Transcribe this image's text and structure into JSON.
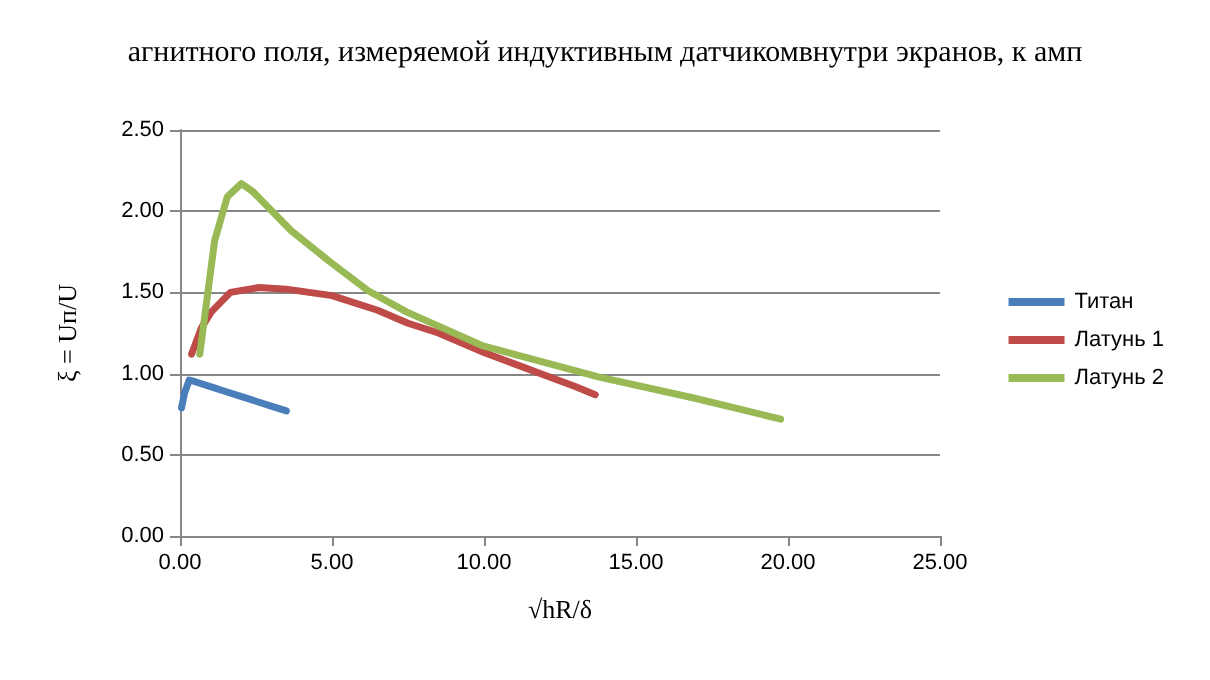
{
  "chart_data": {
    "type": "line",
    "title": "агнитного поля, измеряемой индуктивным датчикомвнутри экранов, к амп",
    "xlabel": "√hR/δ",
    "ylabel": "ξ = Uп/U",
    "xlim": [
      0,
      25
    ],
    "xticks": [
      {
        "value": 0,
        "label": "0.00"
      },
      {
        "value": 5,
        "label": "5.00"
      },
      {
        "value": 10,
        "label": "10.00"
      },
      {
        "value": 15,
        "label": "15.00"
      },
      {
        "value": 20,
        "label": "20.00"
      },
      {
        "value": 25,
        "label": "25.00"
      }
    ],
    "ylim": [
      0,
      2.5
    ],
    "yticks": [
      {
        "value": 0,
        "label": "0.00"
      },
      {
        "value": 0.5,
        "label": "0.50"
      },
      {
        "value": 1,
        "label": "1.00"
      },
      {
        "value": 1.5,
        "label": "1.50"
      },
      {
        "value": 2,
        "label": "2.00"
      },
      {
        "value": 2.5,
        "label": "2.50"
      }
    ],
    "grid": "y",
    "legend": "right",
    "marker": "none",
    "series": [
      {
        "name": "Титан",
        "color": "#4a7ebb",
        "x": [
          0.05,
          0.15,
          0.3,
          0.5,
          1,
          1.5,
          2,
          2.5,
          3,
          3.5
        ],
        "values": [
          0.79,
          0.88,
          0.96,
          0.95,
          0.92,
          0.89,
          0.86,
          0.83,
          0.8,
          0.77
        ]
      },
      {
        "name": "Латунь 1",
        "color": "#be4b48",
        "x": [
          0.38,
          0.7,
          1.03,
          1.66,
          2.6,
          3.5,
          5,
          6.5,
          7.5,
          8.5,
          10,
          11,
          12,
          13,
          13.66
        ],
        "values": [
          1.12,
          1.28,
          1.38,
          1.5,
          1.53,
          1.52,
          1.48,
          1.39,
          1.31,
          1.25,
          1.13,
          1.06,
          0.99,
          0.92,
          0.87
        ]
      },
      {
        "name": "Латунь 2",
        "color": "#98b954",
        "x": [
          0.65,
          1.14,
          1.56,
          2.02,
          2.4,
          3.66,
          4.92,
          6.19,
          7.45,
          9.97,
          13.76,
          16.9,
          19.76
        ],
        "values": [
          1.12,
          1.82,
          2.09,
          2.17,
          2.12,
          1.88,
          1.69,
          1.51,
          1.38,
          1.17,
          0.98,
          0.85,
          0.72
        ]
      }
    ]
  }
}
